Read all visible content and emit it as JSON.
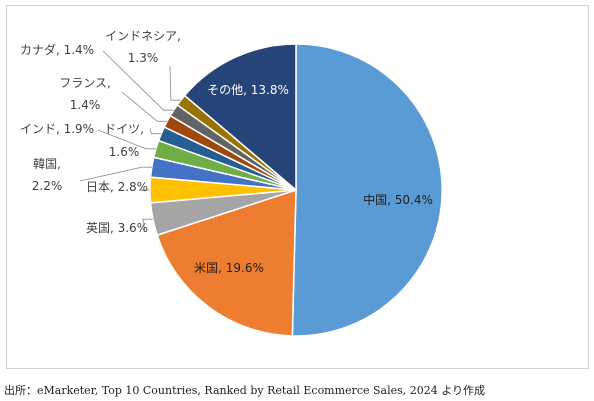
{
  "chart_data": {
    "type": "pie",
    "title": "",
    "start_angle_deg": 0,
    "direction": "clockwise",
    "slices": [
      {
        "label": "中国",
        "value": 50.4,
        "display": "中国, 50.4%",
        "color": "#5B9BD5"
      },
      {
        "label": "米国",
        "value": 19.6,
        "display": "米国, 19.6%",
        "color": "#ED7D31"
      },
      {
        "label": "英国",
        "value": 3.6,
        "display": "英国, 3.6%",
        "color": "#A5A5A5"
      },
      {
        "label": "日本",
        "value": 2.8,
        "display": "日本, 2.8%",
        "color": "#FFC000"
      },
      {
        "label": "韓国",
        "value": 2.2,
        "display": "韓国,\n2.2%",
        "color": "#4472C4"
      },
      {
        "label": "インド",
        "value": 1.9,
        "display": "インド, 1.9%",
        "color": "#70AD47"
      },
      {
        "label": "ドイツ",
        "value": 1.6,
        "display": "ドイツ,\n1.6%",
        "color": "#255E91"
      },
      {
        "label": "フランス",
        "value": 1.4,
        "display": "フランス,\n1.4%",
        "color": "#9E480E"
      },
      {
        "label": "カナダ",
        "value": 1.4,
        "display": "カナダ, 1.4%",
        "color": "#636363"
      },
      {
        "label": "インドネシア",
        "value": 1.3,
        "display": "インドネシア,\n1.3%",
        "color": "#997300"
      },
      {
        "label": "その他",
        "value": 13.8,
        "display": "その他, 13.8%",
        "color": "#264478"
      }
    ]
  },
  "source_text": "出所：eMarketer, Top 10 Countries, Ranked by Retail Ecommerce Sales, 2024 より作成"
}
